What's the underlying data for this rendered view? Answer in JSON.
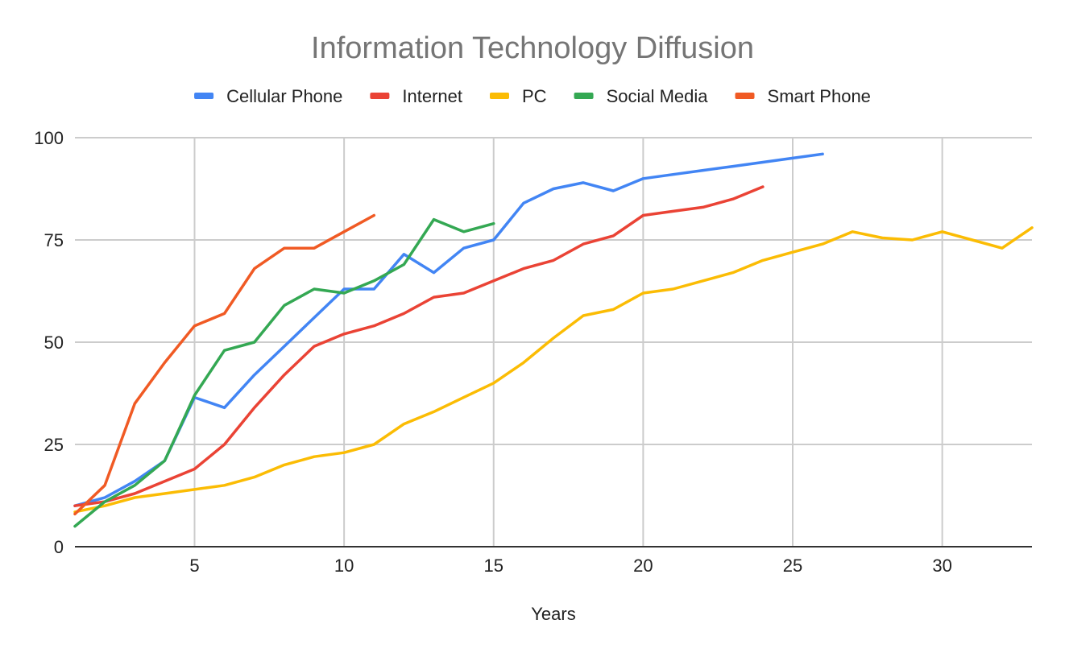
{
  "chart_data": {
    "type": "line",
    "title": "Information Technology Diffusion",
    "xlabel": "Years",
    "ylabel": "",
    "xlim": [
      1,
      33
    ],
    "ylim": [
      0,
      100
    ],
    "x_ticks": [
      5,
      10,
      15,
      20,
      25,
      30
    ],
    "y_ticks": [
      0,
      25,
      50,
      75,
      100
    ],
    "grid": true,
    "legend": "top",
    "series": [
      {
        "name": "Cellular Phone",
        "color": "#4285F4",
        "points": [
          [
            1,
            10
          ],
          [
            2,
            12
          ],
          [
            3,
            16
          ],
          [
            4,
            21
          ],
          [
            5,
            36.5
          ],
          [
            6,
            34
          ],
          [
            7,
            42
          ],
          [
            8,
            49
          ],
          [
            9,
            56
          ],
          [
            10,
            63
          ],
          [
            11,
            63
          ],
          [
            12,
            71.5
          ],
          [
            13,
            67
          ],
          [
            14,
            73
          ],
          [
            15,
            75
          ],
          [
            16,
            84
          ],
          [
            17,
            87.5
          ],
          [
            18,
            89
          ],
          [
            19,
            87
          ],
          [
            20,
            90
          ],
          [
            21,
            91
          ],
          [
            22,
            92
          ],
          [
            23,
            93
          ],
          [
            24,
            94
          ],
          [
            25,
            95
          ],
          [
            26,
            96
          ]
        ]
      },
      {
        "name": "Internet",
        "color": "#EA4335",
        "points": [
          [
            1,
            10
          ],
          [
            2,
            11
          ],
          [
            3,
            13
          ],
          [
            4,
            16
          ],
          [
            5,
            19
          ],
          [
            6,
            25
          ],
          [
            7,
            34
          ],
          [
            8,
            42
          ],
          [
            9,
            49
          ],
          [
            10,
            52
          ],
          [
            11,
            54
          ],
          [
            12,
            57
          ],
          [
            13,
            61
          ],
          [
            14,
            62
          ],
          [
            15,
            65
          ],
          [
            16,
            68
          ],
          [
            17,
            70
          ],
          [
            18,
            74
          ],
          [
            19,
            76
          ],
          [
            20,
            81
          ],
          [
            21,
            82
          ],
          [
            22,
            83
          ],
          [
            23,
            85
          ],
          [
            24,
            88
          ]
        ]
      },
      {
        "name": "PC",
        "color": "#FBBC04",
        "points": [
          [
            1,
            8.5
          ],
          [
            2,
            10
          ],
          [
            3,
            12
          ],
          [
            4,
            13
          ],
          [
            5,
            14
          ],
          [
            6,
            15
          ],
          [
            7,
            17
          ],
          [
            8,
            20
          ],
          [
            9,
            22
          ],
          [
            10,
            23
          ],
          [
            11,
            25
          ],
          [
            12,
            30
          ],
          [
            13,
            33
          ],
          [
            14,
            36.5
          ],
          [
            15,
            40
          ],
          [
            16,
            45
          ],
          [
            17,
            51
          ],
          [
            18,
            56.5
          ],
          [
            19,
            58
          ],
          [
            20,
            62
          ],
          [
            21,
            63
          ],
          [
            22,
            65
          ],
          [
            23,
            67
          ],
          [
            24,
            70
          ],
          [
            25,
            72
          ],
          [
            26,
            74
          ],
          [
            27,
            77
          ],
          [
            28,
            75.5
          ],
          [
            29,
            75
          ],
          [
            30,
            77
          ],
          [
            31,
            75
          ],
          [
            32,
            73
          ],
          [
            33,
            78
          ]
        ]
      },
      {
        "name": "Social Media",
        "color": "#34A853",
        "points": [
          [
            1,
            5
          ],
          [
            2,
            11
          ],
          [
            3,
            15
          ],
          [
            4,
            21
          ],
          [
            5,
            37
          ],
          [
            6,
            48
          ],
          [
            7,
            50
          ],
          [
            8,
            59
          ],
          [
            9,
            63
          ],
          [
            10,
            62
          ],
          [
            11,
            65
          ],
          [
            12,
            69
          ],
          [
            13,
            80
          ],
          [
            14,
            77
          ],
          [
            15,
            79
          ]
        ]
      },
      {
        "name": "Smart Phone",
        "color": "#F05A24",
        "points": [
          [
            1,
            8
          ],
          [
            2,
            15
          ],
          [
            3,
            35
          ],
          [
            4,
            45
          ],
          [
            5,
            54
          ],
          [
            6,
            57
          ],
          [
            7,
            68
          ],
          [
            8,
            73
          ],
          [
            9,
            73
          ],
          [
            10,
            77
          ],
          [
            11,
            81
          ]
        ]
      }
    ]
  }
}
